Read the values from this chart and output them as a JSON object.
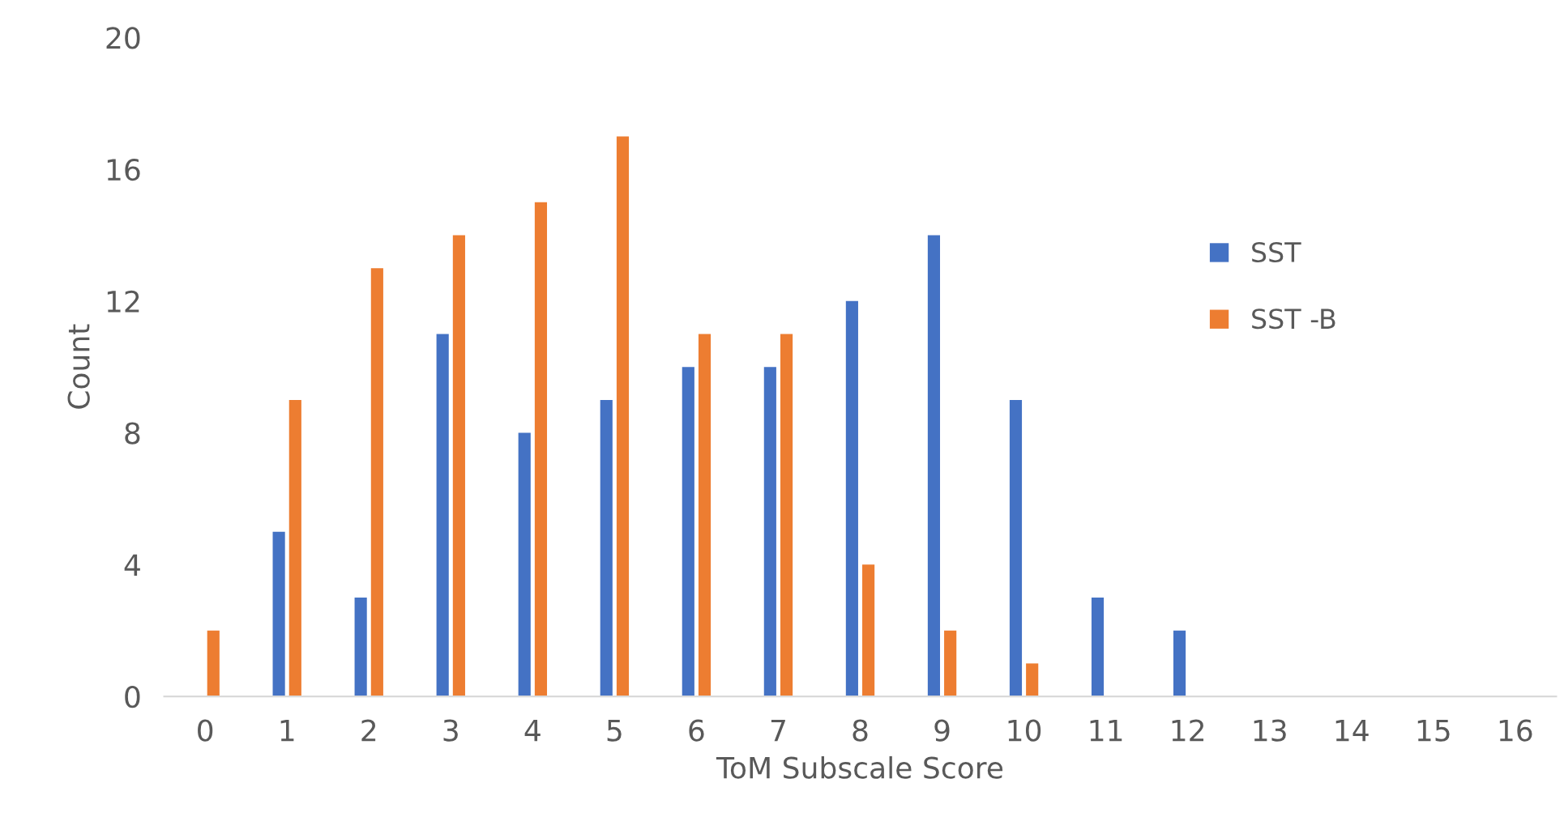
{
  "chart_data": {
    "type": "bar",
    "xlabel": "ToM Subscale Score",
    "ylabel": "Count",
    "categories": [
      "0",
      "1",
      "2",
      "3",
      "4",
      "5",
      "6",
      "7",
      "8",
      "9",
      "10",
      "11",
      "12",
      "13",
      "14",
      "15",
      "16"
    ],
    "series": [
      {
        "name": "SST",
        "color": "#4472c4",
        "values": [
          0,
          5,
          3,
          11,
          8,
          9,
          10,
          10,
          12,
          14,
          9,
          3,
          2,
          0,
          0,
          0,
          0
        ]
      },
      {
        "name": "SST -B",
        "color": "#ed7d31",
        "values": [
          2,
          9,
          13,
          14,
          15,
          17,
          11,
          11,
          4,
          2,
          1,
          0,
          0,
          0,
          0,
          0,
          0
        ]
      }
    ],
    "ylim": [
      0,
      20
    ],
    "yticks": [
      0,
      4,
      8,
      12,
      16,
      20
    ],
    "grid": false,
    "legend": "right"
  }
}
